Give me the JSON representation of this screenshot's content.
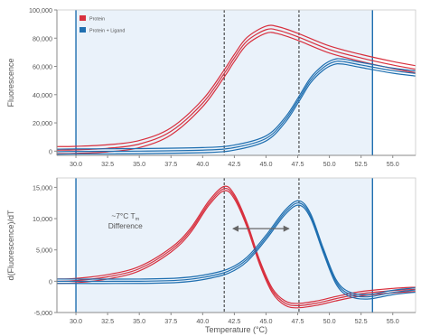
{
  "colors": {
    "protein": "#d8303e",
    "ligand": "#1f6fb0",
    "shade": "#eaf2fa",
    "frame": "#8a8a8a",
    "marker": "#2b2b2b",
    "arrow": "#666666",
    "text": "#555555"
  },
  "chart_data": [
    {
      "type": "line",
      "ylabel": "Fluorescence",
      "xlim": [
        28.5,
        56.8
      ],
      "ylim": [
        -3000,
        100000
      ],
      "ytick_labels": [
        "0",
        "20,000",
        "40,000",
        "60,000",
        "80,000",
        "100,000"
      ],
      "ytick_values": [
        0,
        20000,
        40000,
        60000,
        80000,
        100000
      ],
      "xtick_labels": [
        "30.0",
        "32.5",
        "35.0",
        "37.5",
        "40.0",
        "42.5",
        "45.0",
        "47.5",
        "50.0",
        "52.5",
        "55.0"
      ],
      "xtick_values": [
        30,
        32.5,
        35,
        37.5,
        40,
        42.5,
        45,
        47.5,
        50,
        52.5,
        55
      ],
      "shaded_region": [
        30,
        53.4
      ],
      "markers": [
        41.7,
        47.6
      ],
      "grid": false,
      "legend": {
        "position": "top-left",
        "items": [
          {
            "label": "Protein",
            "color": "#d8303e"
          },
          {
            "label": "Protein + Ligand",
            "color": "#1f6fb0"
          }
        ]
      },
      "series": [
        {
          "name": "Protein",
          "color": "#d8303e",
          "replicate_offsets": [
            -2500,
            0,
            2500
          ],
          "points": [
            [
              28.5,
              700
            ],
            [
              30,
              900
            ],
            [
              32.5,
              2000
            ],
            [
              35,
              5000
            ],
            [
              37.5,
              14000
            ],
            [
              40,
              34000
            ],
            [
              41.7,
              55000
            ],
            [
              42.5,
              66000
            ],
            [
              43.5,
              78000
            ],
            [
              45,
              86000
            ],
            [
              46,
              85500
            ],
            [
              47.5,
              81000
            ],
            [
              50,
              72000
            ],
            [
              52.5,
              66000
            ],
            [
              55,
              61000
            ],
            [
              56.8,
              58000
            ]
          ]
        },
        {
          "name": "Protein + Ligand",
          "color": "#1f6fb0",
          "replicate_offsets": [
            -1800,
            0,
            1800
          ],
          "points": [
            [
              28.5,
              -400
            ],
            [
              30,
              -200
            ],
            [
              35,
              0
            ],
            [
              40,
              700
            ],
            [
              42.5,
              2500
            ],
            [
              45,
              9000
            ],
            [
              46.5,
              22000
            ],
            [
              47.6,
              37000
            ],
            [
              48.5,
              50000
            ],
            [
              49.5,
              59000
            ],
            [
              50.3,
              63000
            ],
            [
              51,
              63500
            ],
            [
              52.5,
              61000
            ],
            [
              55,
              57000
            ],
            [
              56.8,
              55000
            ]
          ]
        }
      ]
    },
    {
      "type": "line",
      "ylabel": "d(Fluorescence)/dT",
      "xlabel": "Temperature (°C)",
      "xlim": [
        28.5,
        56.8
      ],
      "ylim": [
        -5000,
        16500
      ],
      "ytick_labels": [
        "-5,000",
        "0",
        "5,000",
        "10,000",
        "15,000"
      ],
      "ytick_values": [
        -5000,
        0,
        5000,
        10000,
        15000
      ],
      "xtick_labels": [
        "30.0",
        "32.5",
        "35.0",
        "37.5",
        "40.0",
        "42.5",
        "45.0",
        "47.5",
        "50.0",
        "52.5",
        "55.0"
      ],
      "xtick_values": [
        30,
        32.5,
        35,
        37.5,
        40,
        42.5,
        45,
        47.5,
        50,
        52.5,
        55
      ],
      "shaded_region": [
        30,
        53.4
      ],
      "markers": [
        41.7,
        47.6
      ],
      "grid": false,
      "annotation": {
        "line1": "~7°C T",
        "subscript": "m",
        "line2": "Difference",
        "arrow_from": 42.4,
        "arrow_to": 46.8,
        "arrow_y": 8400
      },
      "series": [
        {
          "name": "Protein",
          "color": "#d8303e",
          "replicate_offsets": [
            -350,
            0,
            350
          ],
          "points": [
            [
              28.5,
              0
            ],
            [
              30,
              100
            ],
            [
              32.5,
              700
            ],
            [
              35,
              2000
            ],
            [
              37.5,
              5000
            ],
            [
              39,
              8000
            ],
            [
              40.5,
              12500
            ],
            [
              41.7,
              14800
            ],
            [
              42.5,
              13500
            ],
            [
              43.5,
              9000
            ],
            [
              44.5,
              3000
            ],
            [
              45.5,
              -1500
            ],
            [
              46.5,
              -3500
            ],
            [
              47.5,
              -3900
            ],
            [
              49,
              -3500
            ],
            [
              50.5,
              -2800
            ],
            [
              52.5,
              -2000
            ],
            [
              55,
              -1500
            ],
            [
              56.8,
              -1300
            ]
          ]
        },
        {
          "name": "Protein + Ligand",
          "color": "#1f6fb0",
          "replicate_offsets": [
            -350,
            0,
            350
          ],
          "points": [
            [
              28.5,
              0
            ],
            [
              35,
              0
            ],
            [
              38,
              150
            ],
            [
              40,
              600
            ],
            [
              42,
              1600
            ],
            [
              43.5,
              3500
            ],
            [
              45,
              7000
            ],
            [
              46.5,
              11000
            ],
            [
              47.6,
              12500
            ],
            [
              48.5,
              10500
            ],
            [
              49.5,
              5000
            ],
            [
              50.5,
              0
            ],
            [
              51.5,
              -2000
            ],
            [
              53,
              -2500
            ],
            [
              55,
              -1800
            ],
            [
              56.8,
              -1400
            ]
          ]
        }
      ]
    }
  ]
}
